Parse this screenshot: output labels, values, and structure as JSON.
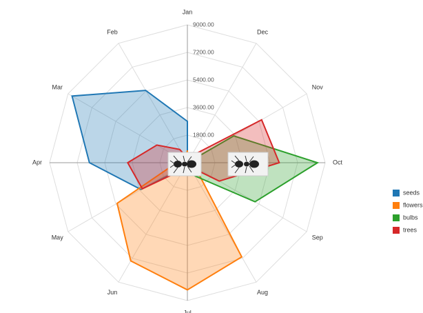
{
  "chart_data": {
    "type": "radar",
    "categories": [
      "Jan",
      "Feb",
      "Mar",
      "Apr",
      "May",
      "Jun",
      "Jul",
      "Aug",
      "Sep",
      "Oct",
      "Nov",
      "Dec"
    ],
    "series": [
      {
        "name": "seeds",
        "color": "#1f77b4",
        "values": [
          2700,
          5450,
          8700,
          6400,
          3500,
          300,
          0,
          0,
          0,
          0,
          0,
          0
        ]
      },
      {
        "name": "flowers",
        "color": "#ff7f0e",
        "values": [
          800,
          300,
          300,
          700,
          5300,
          7400,
          8300,
          7100,
          600,
          0,
          0,
          0
        ]
      },
      {
        "name": "bulbs",
        "color": "#2ca02c",
        "values": [
          0,
          0,
          0,
          0,
          0,
          0,
          0,
          1000,
          5100,
          8500,
          3500,
          0
        ]
      },
      {
        "name": "trees",
        "color": "#d62728",
        "values": [
          300,
          1000,
          2300,
          3900,
          3400,
          500,
          0,
          300,
          2400,
          6000,
          5600,
          500
        ]
      }
    ],
    "ylim": [
      0,
      9000
    ],
    "yticks": [
      {
        "value": 1800,
        "label": "1800.00"
      },
      {
        "value": 3600,
        "label": "3600.00"
      },
      {
        "value": 5400,
        "label": "5400.00"
      },
      {
        "value": 7200,
        "label": "7200.00"
      },
      {
        "value": 9000,
        "label": "9000.00"
      }
    ],
    "grid": true,
    "legend": "right"
  }
}
